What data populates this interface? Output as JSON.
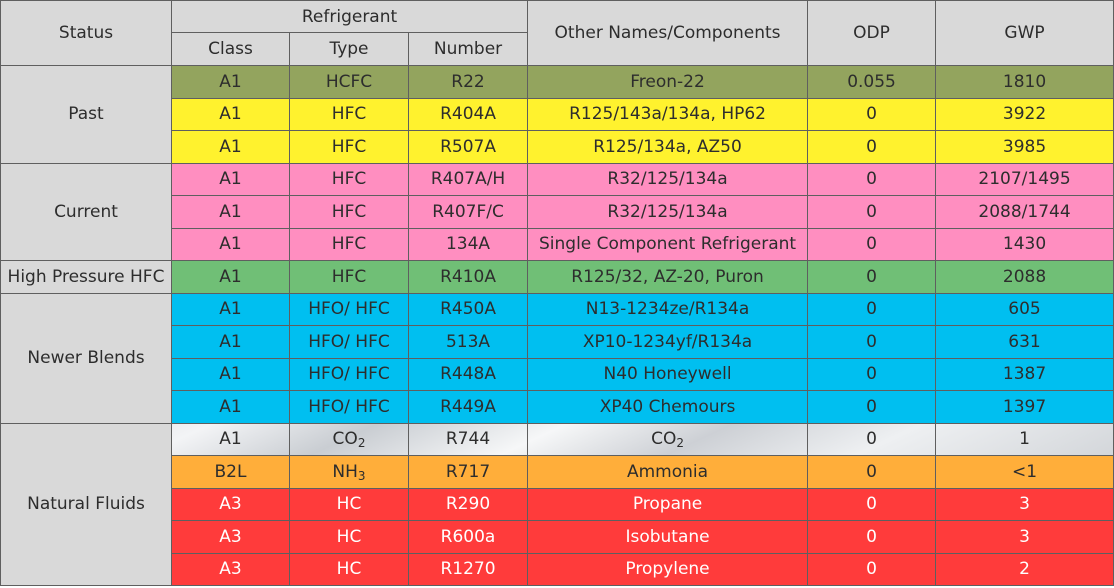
{
  "headers": {
    "status": "Status",
    "refrigerant": "Refrigerant",
    "class": "Class",
    "type": "Type",
    "number": "Number",
    "other_names": "Other Names/Components",
    "odp": "ODP",
    "gwp": "GWP"
  },
  "groups": [
    {
      "status": "Past",
      "rows": [
        {
          "class": "A1",
          "type": "HCFC",
          "number": "R22",
          "other": "Freon-22",
          "odp": "0.055",
          "gwp": "1810",
          "color": "#93a45e"
        },
        {
          "class": "A1",
          "type": "HFC",
          "number": "R404A",
          "other": "R125/143a/134a, HP62",
          "odp": "0",
          "gwp": "3922",
          "color": "#fff22e"
        },
        {
          "class": "A1",
          "type": "HFC",
          "number": "R507A",
          "other": "R125/134a, AZ50",
          "odp": "0",
          "gwp": "3985",
          "color": "#fff22e"
        }
      ]
    },
    {
      "status": "Current",
      "rows": [
        {
          "class": "A1",
          "type": "HFC",
          "number": "R407A/H",
          "other": "R32/125/134a",
          "odp": "0",
          "gwp": "2107/1495",
          "color": "#ff8ec0"
        },
        {
          "class": "A1",
          "type": "HFC",
          "number": "R407F/C",
          "other": "R32/125/134a",
          "odp": "0",
          "gwp": "2088/1744",
          "color": "#ff8ec0"
        },
        {
          "class": "A1",
          "type": "HFC",
          "number": "134A",
          "other": "Single Component Refrigerant",
          "odp": "0",
          "gwp": "1430",
          "color": "#ff8ec0"
        }
      ]
    },
    {
      "status": "High Pressure HFC",
      "rows": [
        {
          "class": "A1",
          "type": "HFC",
          "number": "R410A",
          "other": "R125/32, AZ-20, Puron",
          "odp": "0",
          "gwp": "2088",
          "color": "#70bf76"
        }
      ]
    },
    {
      "status": "Newer Blends",
      "rows": [
        {
          "class": "A1",
          "type": "HFO/ HFC",
          "number": "R450A",
          "other": "N13-1234ze/R134a",
          "odp": "0",
          "gwp": "605",
          "color": "#00bff0"
        },
        {
          "class": "A1",
          "type": "HFO/ HFC",
          "number": "513A",
          "other": "XP10-1234yf/R134a",
          "odp": "0",
          "gwp": "631",
          "color": "#00bff0"
        },
        {
          "class": "A1",
          "type": "HFO/ HFC",
          "number": "R448A",
          "other": "N40 Honeywell",
          "odp": "0",
          "gwp": "1387",
          "color": "#00bff0"
        },
        {
          "class": "A1",
          "type": "HFO/ HFC",
          "number": "R449A",
          "other": "XP40 Chemours",
          "odp": "0",
          "gwp": "1397",
          "color": "#00bff0"
        }
      ]
    },
    {
      "status": "Natural Fluids",
      "rows": [
        {
          "class": "A1",
          "type_base": "CO",
          "type_sub": "2",
          "number": "R744",
          "other_base": "CO",
          "other_sub": "2",
          "odp": "0",
          "gwp": "1",
          "color": "#e6e8eb"
        },
        {
          "class": "B2L",
          "type_base": "NH",
          "type_sub": "3",
          "number": "R717",
          "other": "Ammonia",
          "odp": "0",
          "gwp": "<1",
          "color": "#ffae3a"
        },
        {
          "class": "A3",
          "type": "HC",
          "number": "R290",
          "other": "Propane",
          "odp": "0",
          "gwp": "3",
          "color": "#ff3b3b"
        },
        {
          "class": "A3",
          "type": "HC",
          "number": "R600a",
          "other": "Isobutane",
          "odp": "0",
          "gwp": "3",
          "color": "#ff3b3b"
        },
        {
          "class": "A3",
          "type": "HC",
          "number": "R1270",
          "other": "Propylene",
          "odp": "0",
          "gwp": "2",
          "color": "#ff3b3b"
        }
      ]
    }
  ]
}
